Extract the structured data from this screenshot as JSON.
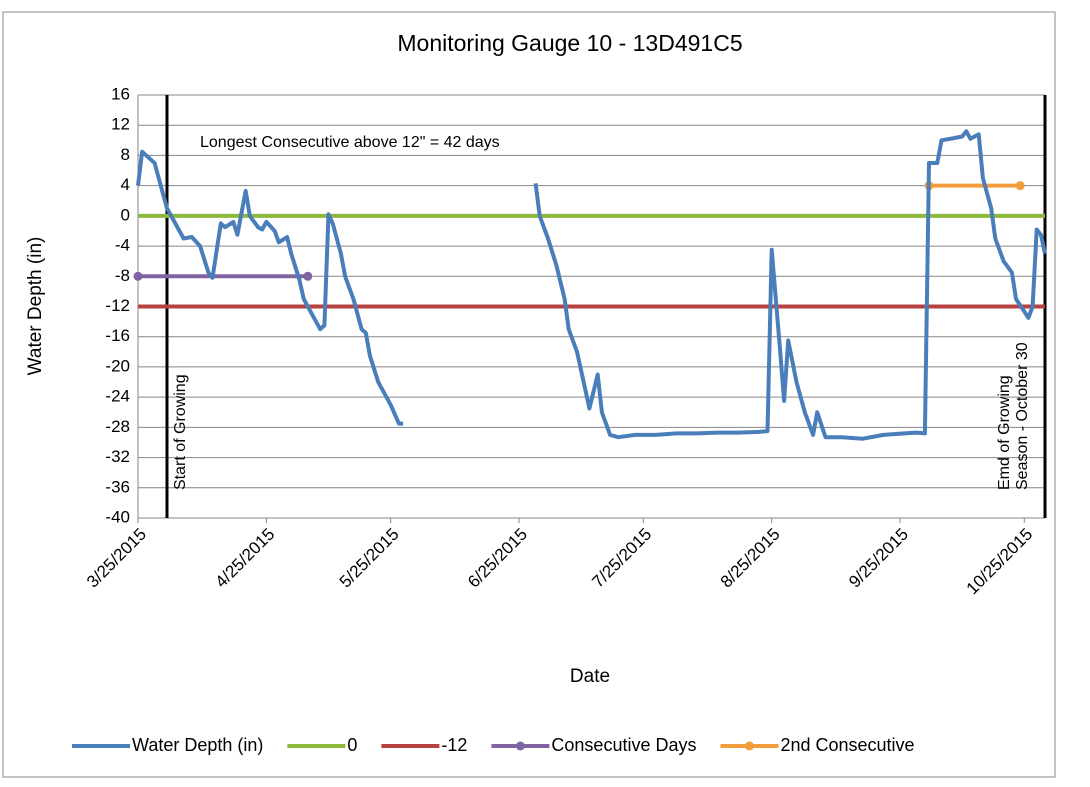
{
  "chart_data": {
    "type": "line",
    "title": "Monitoring Gauge 10 - 13D491C5",
    "x_label": "Date",
    "y_label": "Water Depth (in)",
    "annotation": "Longest Consecutive above 12\" = 42 days",
    "xlim": [
      "2015-03-25",
      "2015-10-30"
    ],
    "xticks": [
      {
        "value": "2015-03-25",
        "label": "3/25/2015"
      },
      {
        "value": "2015-04-25",
        "label": "4/25/2015"
      },
      {
        "value": "2015-05-25",
        "label": "5/25/2015"
      },
      {
        "value": "2015-06-25",
        "label": "6/25/2015"
      },
      {
        "value": "2015-07-25",
        "label": "7/25/2015"
      },
      {
        "value": "2015-08-25",
        "label": "8/25/2015"
      },
      {
        "value": "2015-09-25",
        "label": "9/25/2015"
      },
      {
        "value": "2015-10-25",
        "label": "10/25/2015"
      }
    ],
    "ylim": [
      -40,
      16
    ],
    "yticks": [
      16,
      12,
      8,
      4,
      0,
      -4,
      -8,
      -12,
      -16,
      -20,
      -24,
      -28,
      -32,
      -36,
      -40
    ],
    "grid": true,
    "legend": "bottom",
    "vlines": [
      {
        "x": "2015-04-01",
        "label": [
          "Start of Growing"
        ]
      },
      {
        "x": "2015-10-30",
        "label": [
          "Emd of Growing",
          "Season - October 30"
        ]
      }
    ],
    "series": [
      {
        "name": "Water Depth (in)",
        "color": "#4a7ebb",
        "markers": false,
        "x": [
          "2015-03-25",
          "2015-03-26",
          "2015-03-28",
          "2015-03-29",
          "2015-03-30",
          "2015-04-01",
          "2015-04-03",
          "2015-04-05",
          "2015-04-07",
          "2015-04-09",
          "2015-04-11",
          "2015-04-12",
          "2015-04-14",
          "2015-04-15",
          "2015-04-17",
          "2015-04-18",
          "2015-04-20",
          "2015-04-21",
          "2015-04-23",
          "2015-04-24",
          "2015-04-25",
          "2015-04-27",
          "2015-04-28",
          "2015-04-30",
          "2015-05-01",
          "2015-05-03",
          "2015-05-04",
          "2015-05-06",
          "2015-05-08",
          "2015-05-09",
          "2015-05-10",
          "2015-05-11",
          "2015-05-13",
          "2015-05-14",
          "2015-05-16",
          "2015-05-18",
          "2015-05-19",
          "2015-05-20",
          "2015-05-22",
          "2015-05-25",
          "2015-05-27",
          "2015-05-28",
          "2015-06-10",
          "2015-06-29",
          "2015-06-30",
          "2015-07-02",
          "2015-07-04",
          "2015-07-06",
          "2015-07-07",
          "2015-07-09",
          "2015-07-11",
          "2015-07-12",
          "2015-07-14",
          "2015-07-15",
          "2015-07-17",
          "2015-07-19",
          "2015-07-23",
          "2015-07-28",
          "2015-08-02",
          "2015-08-07",
          "2015-08-12",
          "2015-08-17",
          "2015-08-22",
          "2015-08-24",
          "2015-08-25",
          "2015-08-27",
          "2015-08-28",
          "2015-08-29",
          "2015-08-31",
          "2015-09-02",
          "2015-09-04",
          "2015-09-05",
          "2015-09-07",
          "2015-09-11",
          "2015-09-16",
          "2015-09-21",
          "2015-09-26",
          "2015-09-29",
          "2015-10-01",
          "2015-10-02",
          "2015-10-04",
          "2015-10-05",
          "2015-10-08",
          "2015-10-10",
          "2015-10-11",
          "2015-10-12",
          "2015-10-14",
          "2015-10-15",
          "2015-10-17",
          "2015-10-18",
          "2015-10-20",
          "2015-10-22",
          "2015-10-23",
          "2015-10-26",
          "2015-10-27",
          "2015-10-28",
          "2015-10-29",
          "2015-10-30"
        ],
        "values": [
          4,
          8.5,
          7.5,
          7,
          5,
          1,
          -1,
          -3,
          -2.8,
          -4,
          -7.5,
          -8.2,
          -1,
          -1.5,
          -0.8,
          -2.5,
          3.3,
          0,
          -1.5,
          -1.8,
          -0.8,
          -2,
          -3.5,
          -2.8,
          -5,
          -8.5,
          -11,
          -13,
          -15,
          -14.5,
          0.2,
          -1,
          -5,
          -8,
          -11,
          -15,
          -15.5,
          -18.5,
          -22,
          -25,
          -27.5,
          -27.5,
          null,
          4.3,
          0,
          -3,
          -6.5,
          -11,
          -15,
          -18,
          -23,
          -25.5,
          -21,
          -26,
          -29,
          -29.3,
          -29,
          -29,
          -28.8,
          -28.8,
          -28.7,
          -28.7,
          -28.6,
          -28.5,
          -4.5,
          -17.5,
          -24.5,
          -16.5,
          -22,
          -26,
          -29,
          -26,
          -29.3,
          -29.3,
          -29.5,
          -29,
          -28.8,
          -28.7,
          -28.8,
          7,
          7,
          10,
          10.3,
          10.5,
          11.2,
          10.2,
          10.8,
          5,
          1,
          -3,
          -6,
          -7.5,
          -11,
          -13.5,
          -12,
          -1.8,
          -2.5,
          -5
        ]
      },
      {
        "name": "0",
        "color": "#8cb83c",
        "markers": false,
        "x": [
          "2015-03-25",
          "2015-10-30"
        ],
        "values": [
          0,
          0
        ]
      },
      {
        "name": "-12",
        "color": "#b7413e",
        "markers": false,
        "x": [
          "2015-03-25",
          "2015-10-30"
        ],
        "values": [
          -12,
          -12
        ]
      },
      {
        "name": "Consecutive Days",
        "color": "#8064a2",
        "markers": true,
        "x": [
          "2015-03-25",
          "2015-05-05"
        ],
        "values": [
          -8,
          -8
        ]
      },
      {
        "name": "2nd Consecutive",
        "color": "#f39c3c",
        "markers": true,
        "x": [
          "2015-10-02",
          "2015-10-24"
        ],
        "values": [
          4,
          4
        ]
      }
    ]
  }
}
